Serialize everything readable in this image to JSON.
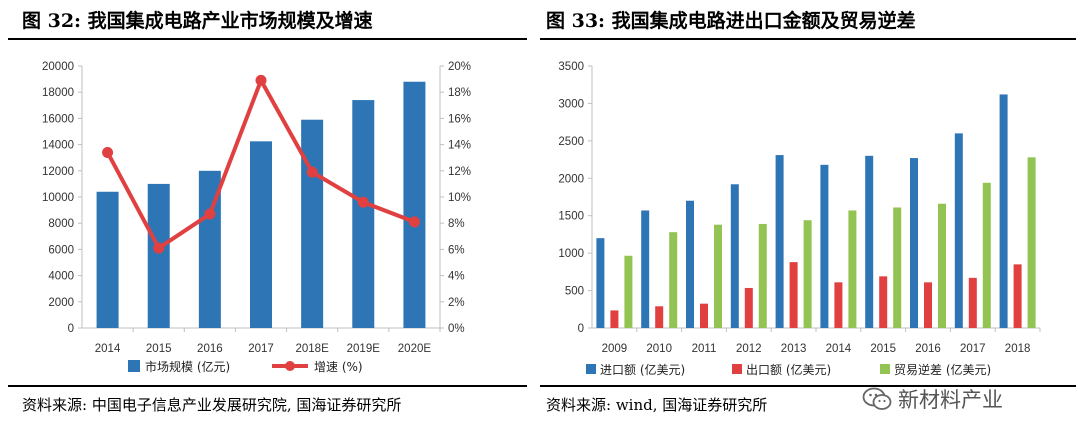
{
  "colors": {
    "blue": "#2E75B6",
    "red": "#E04040",
    "green": "#92C353",
    "axis": "#bfbfbf"
  },
  "left": {
    "title": "图 32: 我国集成电路产业市场规模及增速",
    "source": "资料来源: 中国电子信息产业发展研究院, 国海证券研究所"
  },
  "right": {
    "title": "图 33: 我国集成电路进出口金额及贸易逆差",
    "source": "资料来源: wind, 国海证券研究所"
  },
  "watermark": {
    "text": "新材料产业",
    "icon": "wechat-icon"
  },
  "chart_data": [
    {
      "type": "bar+line",
      "categories": [
        "2014",
        "2015",
        "2016",
        "2017",
        "2018E",
        "2019E",
        "2020E"
      ],
      "series": [
        {
          "name": "市场规模 (亿元)",
          "type": "bar",
          "axis": "left",
          "values": [
            10400,
            11000,
            12000,
            14250,
            15900,
            17400,
            18800
          ]
        },
        {
          "name": "增速 (%)",
          "type": "line",
          "axis": "right",
          "values": [
            13.4,
            6.1,
            8.7,
            18.9,
            11.9,
            9.6,
            8.1
          ]
        }
      ],
      "ylim_left": [
        0,
        20000
      ],
      "yticks_left": [
        "0",
        "2000",
        "4000",
        "6000",
        "8000",
        "10000",
        "12000",
        "14000",
        "16000",
        "18000",
        "20000"
      ],
      "ylim_right": [
        0,
        20
      ],
      "yticks_right": [
        "0%",
        "2%",
        "4%",
        "6%",
        "8%",
        "10%",
        "12%",
        "14%",
        "16%",
        "18%",
        "20%"
      ],
      "legend": "bottom"
    },
    {
      "type": "bar",
      "categories": [
        "2009",
        "2010",
        "2011",
        "2012",
        "2013",
        "2014",
        "2015",
        "2016",
        "2017",
        "2018"
      ],
      "series": [
        {
          "name": "进口额 (亿美元)",
          "values": [
            1200,
            1570,
            1700,
            1920,
            2310,
            2180,
            2300,
            2270,
            2600,
            3120
          ]
        },
        {
          "name": "出口额 (亿美元)",
          "values": [
            235,
            290,
            325,
            535,
            880,
            610,
            690,
            610,
            670,
            850
          ]
        },
        {
          "name": "贸易逆差 (亿美元)",
          "values": [
            965,
            1280,
            1380,
            1390,
            1440,
            1570,
            1610,
            1660,
            1940,
            2280
          ]
        }
      ],
      "ylim": [
        0,
        3500
      ],
      "yticks": [
        "0",
        "500",
        "1000",
        "1500",
        "2000",
        "2500",
        "3000",
        "3500"
      ],
      "legend": "bottom"
    }
  ]
}
